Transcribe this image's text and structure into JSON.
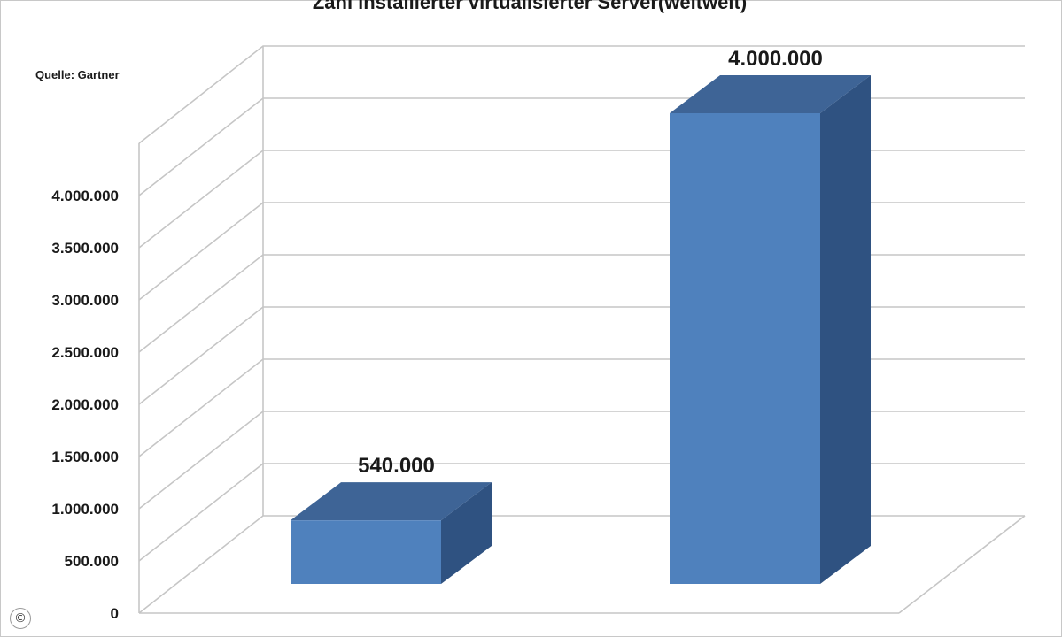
{
  "chart_data": {
    "type": "bar",
    "title": "Zahl installierter virtualisierter Server(weltweit)",
    "source": "Quelle: Gartner",
    "categories": [
      "",
      ""
    ],
    "values": [
      540000,
      4000000
    ],
    "value_labels": [
      "540.000",
      "4.000.000"
    ],
    "ylim": [
      0,
      4500000
    ],
    "yticks": [
      0,
      500000,
      1000000,
      1500000,
      2000000,
      2500000,
      3000000,
      3500000,
      4000000
    ],
    "ytick_labels": [
      "0",
      "500.000",
      "1.000.000",
      "1.500.000",
      "2.000.000",
      "2.500.000",
      "3.000.000",
      "3.500.000",
      "4.000.000"
    ],
    "grid": true,
    "legend": "none",
    "style": "3d-column",
    "colors": {
      "front": "#4f81bd",
      "top": "#3e6496",
      "side": "#2f5281"
    }
  },
  "watermark": {
    "symbol": "©"
  }
}
